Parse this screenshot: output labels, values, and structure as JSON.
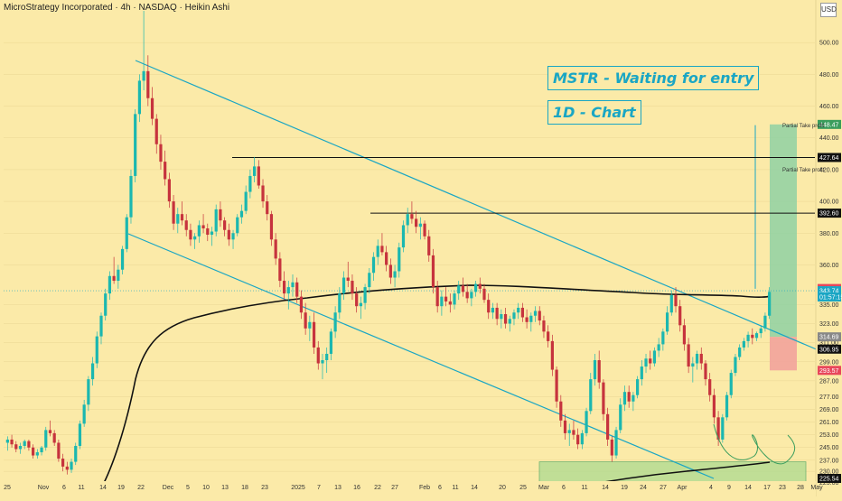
{
  "header": {
    "title": "MicroStrategy Incorporated · 4h · NASDAQ · Heikin Ashi",
    "currency": "USD"
  },
  "annotations": {
    "main": "MSTR - Waiting for entry",
    "timeframe": "1D - Chart"
  },
  "take_profit": {
    "label1": "Partial Take profit",
    "label2": "Partial Take profit"
  },
  "colors": {
    "background": "#fbeaa8",
    "bull": "#1bb7b0",
    "bear": "#c6333d",
    "channel": "#1aa6c4",
    "ma": "#111111",
    "target_zone": "#8fd1a3",
    "stop_zone": "#f2a39b"
  },
  "chart_data": {
    "type": "candlestick",
    "title": "MicroStrategy Incorporated · 4h · NASDAQ · Heikin Ashi",
    "y_ticks": [
      500.0,
      480.0,
      460.0,
      440.0,
      420.0,
      400.0,
      380.0,
      360.0,
      335.0,
      323.0,
      311.0,
      299.0,
      287.0,
      277.0,
      269.0,
      261.0,
      253.0,
      245.0,
      237.0,
      230.0,
      223.0
    ],
    "ylim": [
      217,
      520
    ],
    "x_ticks": [
      "25",
      "Nov",
      "6",
      "11",
      "14",
      "19",
      "22",
      "Dec",
      "5",
      "10",
      "13",
      "18",
      "23",
      "2025",
      "7",
      "13",
      "16",
      "22",
      "27",
      "Feb",
      "6",
      "11",
      "14",
      "20",
      "25",
      "Mar",
      "6",
      "11",
      "14",
      "19",
      "24",
      "27",
      "Apr",
      "4",
      "9",
      "14",
      "17",
      "23",
      "28",
      "May"
    ],
    "price_tags": [
      {
        "label": "448.47",
        "value": 448.47,
        "color": "#3a9d5d"
      },
      {
        "label": "427.64",
        "value": 427.64,
        "color": "#111111"
      },
      {
        "label": "392.60",
        "value": 392.6,
        "color": "#111111"
      },
      {
        "label": "345.13",
        "value": 345.13,
        "color": "#e8475b"
      },
      {
        "label": "343.74",
        "value": 343.74,
        "color": "#1aa6c4"
      },
      {
        "label": "01:57:15",
        "value": 339.8,
        "color": "#1aa6c4"
      },
      {
        "label": "314.69",
        "value": 314.69,
        "color": "#888888"
      },
      {
        "label": "306.95",
        "value": 306.95,
        "color": "#111111"
      },
      {
        "label": "293.57",
        "value": 293.57,
        "color": "#e8475b"
      },
      {
        "label": "225.54",
        "value": 225.54,
        "color": "#111111"
      }
    ],
    "levels": [
      {
        "label": "Partial Take profit",
        "value": 427.64
      },
      {
        "label": "Partial Take profit",
        "value": 392.6
      }
    ],
    "current_price": 343.74,
    "trade_zones": {
      "target": {
        "from": 314.69,
        "to": 448.47
      },
      "stop": {
        "from": 293.57,
        "to": 314.69
      },
      "support_box": {
        "from": 223,
        "to": 236
      }
    },
    "candles": [
      [
        0.0,
        248,
        252,
        243,
        250
      ],
      [
        1.0,
        250,
        253,
        245,
        247
      ],
      [
        2.0,
        247,
        249,
        242,
        244
      ],
      [
        3.0,
        244,
        248,
        241,
        246
      ],
      [
        4.0,
        246,
        250,
        244,
        249
      ],
      [
        5.0,
        249,
        250,
        243,
        245
      ],
      [
        6.0,
        245,
        247,
        238,
        240
      ],
      [
        7.0,
        240,
        244,
        238,
        242
      ],
      [
        8.0,
        242,
        246,
        240,
        245
      ],
      [
        9.0,
        245,
        258,
        243,
        256
      ],
      [
        10.0,
        256,
        262,
        252,
        254
      ],
      [
        11.0,
        254,
        256,
        246,
        248
      ],
      [
        12.0,
        248,
        250,
        236,
        238
      ],
      [
        13.0,
        238,
        241,
        230,
        233
      ],
      [
        14.0,
        233,
        236,
        228,
        231
      ],
      [
        15.0,
        231,
        238,
        229,
        236
      ],
      [
        16.0,
        236,
        248,
        234,
        246
      ],
      [
        17.0,
        246,
        262,
        244,
        260
      ],
      [
        18.0,
        260,
        275,
        258,
        272
      ],
      [
        19.0,
        272,
        290,
        268,
        288
      ],
      [
        20.0,
        288,
        302,
        284,
        298
      ],
      [
        21.0,
        298,
        318,
        295,
        315
      ],
      [
        22.0,
        315,
        330,
        310,
        328
      ],
      [
        23.0,
        328,
        345,
        325,
        342
      ],
      [
        24.0,
        342,
        356,
        338,
        353
      ],
      [
        25.0,
        353,
        365,
        348,
        350
      ],
      [
        26.0,
        350,
        360,
        345,
        357
      ],
      [
        27.0,
        357,
        372,
        354,
        370
      ],
      [
        28.0,
        370,
        392,
        368,
        390
      ],
      [
        29.0,
        390,
        420,
        386,
        416
      ],
      [
        30.0,
        416,
        458,
        412,
        455
      ],
      [
        31.0,
        455,
        480,
        450,
        476
      ],
      [
        32.0,
        476,
        520,
        470,
        482
      ],
      [
        33.0,
        482,
        492,
        460,
        465
      ],
      [
        34.0,
        465,
        472,
        448,
        452
      ],
      [
        35.0,
        452,
        455,
        430,
        436
      ],
      [
        36.0,
        436,
        442,
        420,
        425
      ],
      [
        37.0,
        425,
        432,
        410,
        414
      ],
      [
        38.0,
        414,
        418,
        396,
        400
      ],
      [
        39.0,
        400,
        404,
        382,
        386
      ],
      [
        40.0,
        386,
        396,
        380,
        392
      ],
      [
        41.0,
        392,
        400,
        385,
        388
      ],
      [
        42.0,
        388,
        392,
        378,
        382
      ],
      [
        43.0,
        382,
        386,
        372,
        376
      ],
      [
        44.0,
        376,
        380,
        370,
        378
      ],
      [
        45.0,
        378,
        388,
        374,
        385
      ],
      [
        46.0,
        385,
        392,
        380,
        383
      ],
      [
        47.0,
        383,
        386,
        375,
        379
      ],
      [
        48.0,
        379,
        384,
        372,
        381
      ],
      [
        49.0,
        381,
        398,
        378,
        395
      ],
      [
        50.0,
        395,
        400,
        384,
        388
      ],
      [
        51.0,
        388,
        390,
        378,
        382
      ],
      [
        52.0,
        382,
        386,
        372,
        376
      ],
      [
        53.0,
        376,
        382,
        370,
        380
      ],
      [
        54.0,
        380,
        392,
        378,
        390
      ],
      [
        55.0,
        390,
        398,
        386,
        394
      ],
      [
        56.0,
        394,
        410,
        392,
        406
      ],
      [
        57.0,
        406,
        420,
        402,
        416
      ],
      [
        58.0,
        416,
        428,
        412,
        422
      ],
      [
        59.0,
        422,
        426,
        408,
        410
      ],
      [
        60.0,
        410,
        414,
        396,
        400
      ],
      [
        61.0,
        400,
        404,
        388,
        392
      ],
      [
        62.0,
        392,
        394,
        372,
        376
      ],
      [
        63.0,
        376,
        380,
        360,
        364
      ],
      [
        64.0,
        364,
        368,
        346,
        350
      ],
      [
        65.0,
        350,
        356,
        338,
        342
      ],
      [
        66.0,
        342,
        350,
        332,
        346
      ],
      [
        67.0,
        346,
        354,
        340,
        349
      ],
      [
        68.0,
        349,
        352,
        336,
        340
      ],
      [
        69.0,
        340,
        344,
        326,
        330
      ],
      [
        70.0,
        330,
        336,
        316,
        320
      ],
      [
        71.0,
        320,
        328,
        312,
        324
      ],
      [
        72.0,
        324,
        330,
        304,
        308
      ],
      [
        73.0,
        308,
        312,
        294,
        298
      ],
      [
        74.0,
        298,
        304,
        288,
        300
      ],
      [
        75.0,
        300,
        308,
        292,
        304
      ],
      [
        76.0,
        304,
        320,
        300,
        318
      ],
      [
        77.0,
        318,
        334,
        314,
        330
      ],
      [
        78.0,
        330,
        346,
        326,
        342
      ],
      [
        79.0,
        342,
        356,
        338,
        352
      ],
      [
        80.0,
        352,
        362,
        346,
        350
      ],
      [
        81.0,
        350,
        354,
        338,
        342
      ],
      [
        82.0,
        342,
        346,
        330,
        334
      ],
      [
        83.0,
        334,
        340,
        326,
        336
      ],
      [
        84.0,
        336,
        348,
        332,
        346
      ],
      [
        85.0,
        346,
        358,
        342,
        355
      ],
      [
        86.0,
        355,
        368,
        350,
        365
      ],
      [
        87.0,
        365,
        376,
        360,
        372
      ],
      [
        88.0,
        372,
        380,
        366,
        368
      ],
      [
        89.0,
        368,
        372,
        356,
        360
      ],
      [
        90.0,
        360,
        364,
        348,
        352
      ],
      [
        91.0,
        352,
        360,
        346,
        356
      ],
      [
        92.0,
        356,
        374,
        352,
        371
      ],
      [
        93.0,
        371,
        388,
        368,
        385
      ],
      [
        94.0,
        385,
        396,
        380,
        392
      ],
      [
        95.0,
        392,
        400,
        386,
        389
      ],
      [
        96.0,
        389,
        394,
        380,
        384
      ],
      [
        97.0,
        384,
        390,
        376,
        386
      ],
      [
        98.0,
        386,
        388,
        376,
        378
      ],
      [
        99.0,
        378,
        382,
        362,
        366
      ],
      [
        100.0,
        366,
        370,
        342,
        346
      ],
      [
        101.0,
        346,
        350,
        330,
        334
      ],
      [
        102.0,
        334,
        344,
        328,
        340
      ],
      [
        103.0,
        340,
        346,
        334,
        337
      ],
      [
        104.0,
        337,
        342,
        330,
        335
      ],
      [
        105.0,
        335,
        344,
        332,
        342
      ],
      [
        106.0,
        342,
        350,
        338,
        347
      ],
      [
        107.0,
        347,
        352,
        340,
        343
      ],
      [
        108.0,
        343,
        348,
        336,
        339
      ],
      [
        109.0,
        339,
        345,
        334,
        343
      ],
      [
        110.0,
        343,
        350,
        340,
        348
      ],
      [
        111.0,
        348,
        352,
        342,
        345
      ],
      [
        112.0,
        345,
        348,
        336,
        338
      ],
      [
        113.0,
        338,
        342,
        326,
        330
      ],
      [
        114.0,
        330,
        336,
        326,
        333
      ],
      [
        115.0,
        333,
        336,
        322,
        326
      ],
      [
        116.0,
        326,
        332,
        320,
        329
      ],
      [
        117.0,
        329,
        333,
        320,
        323
      ],
      [
        118.0,
        323,
        328,
        318,
        326
      ],
      [
        119.0,
        326,
        332,
        322,
        330
      ],
      [
        120.0,
        330,
        336,
        326,
        333
      ],
      [
        121.0,
        333,
        336,
        324,
        327
      ],
      [
        122.0,
        327,
        332,
        320,
        324
      ],
      [
        123.0,
        324,
        330,
        318,
        328
      ],
      [
        124.0,
        328,
        334,
        324,
        331
      ],
      [
        125.0,
        331,
        334,
        322,
        325
      ],
      [
        126.0,
        325,
        328,
        314,
        318
      ],
      [
        127.0,
        318,
        322,
        308,
        312
      ],
      [
        128.0,
        312,
        316,
        290,
        294
      ],
      [
        129.0,
        294,
        296,
        270,
        274
      ],
      [
        130.0,
        274,
        278,
        258,
        262
      ],
      [
        131.0,
        262,
        266,
        250,
        254
      ],
      [
        132.0,
        254,
        260,
        246,
        256
      ],
      [
        133.0,
        256,
        262,
        250,
        253
      ],
      [
        134.0,
        253,
        257,
        244,
        247
      ],
      [
        135.0,
        247,
        256,
        244,
        254
      ],
      [
        136.0,
        254,
        270,
        252,
        268
      ],
      [
        137.0,
        268,
        292,
        266,
        288
      ],
      [
        138.0,
        288,
        304,
        284,
        300
      ],
      [
        139.0,
        300,
        306,
        282,
        286
      ],
      [
        140.0,
        286,
        288,
        262,
        266
      ],
      [
        141.0,
        266,
        270,
        246,
        250
      ],
      [
        142.0,
        250,
        252,
        236,
        240
      ],
      [
        143.0,
        240,
        258,
        238,
        256
      ],
      [
        144.0,
        256,
        276,
        254,
        272
      ],
      [
        145.0,
        272,
        284,
        268,
        280
      ],
      [
        146.0,
        280,
        284,
        270,
        274
      ],
      [
        147.0,
        274,
        280,
        268,
        278
      ],
      [
        148.0,
        278,
        290,
        276,
        288
      ],
      [
        149.0,
        288,
        300,
        284,
        296
      ],
      [
        150.0,
        296,
        304,
        292,
        301
      ],
      [
        151.0,
        301,
        306,
        294,
        298
      ],
      [
        152.0,
        298,
        308,
        296,
        306
      ],
      [
        153.0,
        306,
        314,
        302,
        310
      ],
      [
        154.0,
        310,
        320,
        306,
        318
      ],
      [
        155.0,
        318,
        334,
        316,
        330
      ],
      [
        156.0,
        330,
        344,
        328,
        341
      ],
      [
        157.0,
        341,
        346,
        330,
        334
      ],
      [
        158.0,
        334,
        338,
        318,
        322
      ],
      [
        159.0,
        322,
        326,
        306,
        310
      ],
      [
        160.0,
        310,
        314,
        292,
        296
      ],
      [
        161.0,
        296,
        302,
        286,
        298
      ],
      [
        162.0,
        298,
        306,
        294,
        304
      ],
      [
        163.0,
        304,
        308,
        294,
        298
      ],
      [
        164.0,
        298,
        300,
        284,
        288
      ],
      [
        165.0,
        288,
        292,
        274,
        278
      ],
      [
        166.0,
        278,
        282,
        260,
        264
      ],
      [
        167.0,
        264,
        268,
        246,
        250
      ],
      [
        168.0,
        250,
        266,
        248,
        264
      ],
      [
        169.0,
        264,
        280,
        262,
        278
      ],
      [
        170.0,
        278,
        294,
        276,
        292
      ],
      [
        171.0,
        292,
        304,
        290,
        302
      ],
      [
        172.0,
        302,
        310,
        300,
        308
      ],
      [
        173.0,
        308,
        314,
        306,
        312
      ],
      [
        174.0,
        312,
        318,
        308,
        316
      ],
      [
        175.0,
        316,
        320,
        310,
        314
      ],
      [
        176.0,
        314,
        318,
        312,
        317
      ],
      [
        177.0,
        317,
        322,
        314,
        320
      ],
      [
        178.0,
        320,
        330,
        318,
        328
      ],
      [
        179.0,
        328,
        346,
        326,
        343
      ]
    ]
  }
}
